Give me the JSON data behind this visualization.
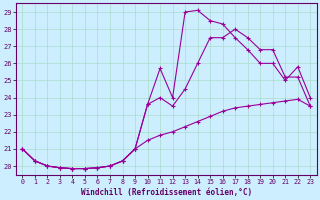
{
  "xlabel": "Windchill (Refroidissement éolien,°C)",
  "bg_color": "#cceeff",
  "grid_color": "#aaddcc",
  "line_color": "#990099",
  "xlim": [
    -0.5,
    23.5
  ],
  "ylim": [
    19.5,
    29.5
  ],
  "xticks": [
    0,
    1,
    2,
    3,
    4,
    5,
    6,
    7,
    8,
    9,
    10,
    11,
    12,
    13,
    14,
    15,
    16,
    17,
    18,
    19,
    20,
    21,
    22,
    23
  ],
  "yticks": [
    20,
    21,
    22,
    23,
    24,
    25,
    26,
    27,
    28,
    29
  ],
  "line1_x": [
    0,
    1,
    2,
    3,
    4,
    5,
    6,
    7,
    8,
    9,
    10,
    11,
    12,
    13,
    14,
    15,
    16,
    17,
    18,
    19,
    20,
    21,
    22,
    23
  ],
  "line1_y": [
    21.0,
    20.3,
    20.0,
    19.9,
    19.85,
    19.85,
    19.9,
    20.0,
    20.3,
    21.0,
    23.6,
    25.7,
    24.0,
    29.0,
    29.1,
    28.5,
    28.3,
    27.5,
    26.8,
    26.0,
    26.0,
    25.0,
    25.8,
    24.0
  ],
  "line2_x": [
    0,
    1,
    2,
    3,
    4,
    5,
    6,
    7,
    8,
    9,
    10,
    11,
    12,
    13,
    14,
    15,
    16,
    17,
    18,
    19,
    20,
    21,
    22,
    23
  ],
  "line2_y": [
    21.0,
    20.3,
    20.0,
    19.9,
    19.85,
    19.85,
    19.9,
    20.0,
    20.3,
    21.0,
    23.6,
    24.0,
    23.5,
    24.5,
    26.0,
    27.5,
    27.5,
    28.0,
    27.5,
    26.8,
    26.8,
    25.2,
    25.2,
    23.5
  ],
  "line3_x": [
    0,
    1,
    2,
    3,
    4,
    5,
    6,
    7,
    8,
    9,
    10,
    11,
    12,
    13,
    14,
    15,
    16,
    17,
    18,
    19,
    20,
    21,
    22,
    23
  ],
  "line3_y": [
    21.0,
    20.3,
    20.0,
    19.9,
    19.85,
    19.85,
    19.9,
    20.0,
    20.3,
    21.0,
    21.5,
    21.8,
    22.0,
    22.3,
    22.6,
    22.9,
    23.2,
    23.4,
    23.5,
    23.6,
    23.7,
    23.8,
    23.9,
    23.5
  ]
}
